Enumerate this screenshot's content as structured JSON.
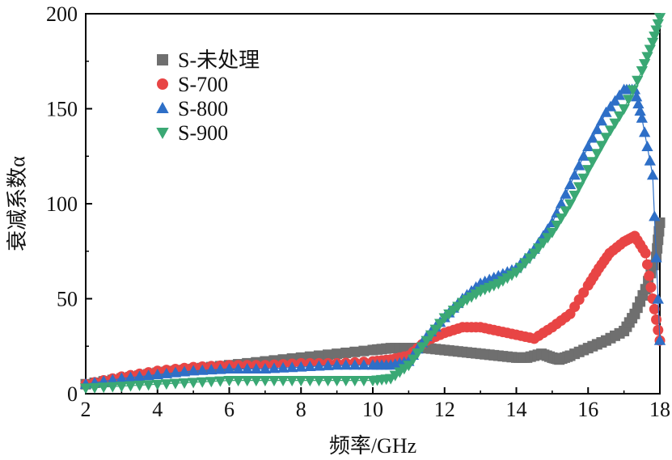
{
  "chart_data": {
    "type": "scatter",
    "title": "",
    "xlabel": "频率/GHz",
    "ylabel": "衰减系数α",
    "xlim": [
      2,
      18
    ],
    "ylim": [
      0,
      200
    ],
    "x_ticks": [
      2,
      4,
      6,
      8,
      10,
      12,
      14,
      16,
      18
    ],
    "y_ticks": [
      0,
      50,
      100,
      150,
      200
    ],
    "legend_position": "top-left",
    "grid": false,
    "series": [
      {
        "name": "S-未处理",
        "marker": "square",
        "color": "#6f6f6f",
        "x": [
          2,
          3,
          4,
          5,
          6,
          7,
          8,
          9,
          10,
          10.5,
          11,
          11.5,
          12,
          12.5,
          13,
          13.5,
          14,
          14.3,
          14.7,
          15,
          15.2,
          15.5,
          16,
          16.5,
          17,
          17.3,
          17.6,
          17.9,
          18
        ],
        "y": [
          5,
          8,
          11,
          13,
          15,
          17,
          19,
          21,
          23,
          24,
          24,
          24,
          23,
          22,
          21,
          20,
          19,
          19,
          21,
          19,
          18,
          20,
          24,
          28,
          33,
          42,
          55,
          72,
          90
        ]
      },
      {
        "name": "S-700",
        "marker": "circle",
        "color": "#e84545",
        "x": [
          2,
          3,
          4,
          5,
          6,
          7,
          8,
          9,
          10,
          10.5,
          11,
          11.5,
          12,
          12.5,
          13,
          13.5,
          14,
          14.5,
          15,
          15.5,
          16,
          16.3,
          16.6,
          17,
          17.3,
          17.6,
          17.8,
          18
        ],
        "y": [
          5,
          9,
          12,
          14,
          15,
          15,
          16,
          16,
          17,
          18,
          20,
          28,
          32,
          35,
          35,
          33,
          31,
          29,
          35,
          42,
          57,
          66,
          74,
          80,
          83,
          74,
          50,
          28
        ]
      },
      {
        "name": "S-800",
        "marker": "triangle-up",
        "color": "#2e6fc7",
        "x": [
          2,
          3,
          4,
          5,
          6,
          7,
          8,
          9,
          10,
          10.5,
          11,
          11.5,
          12,
          12.5,
          13,
          13.5,
          14,
          14.5,
          15,
          15.5,
          16,
          16.5,
          17,
          17.3,
          17.5,
          17.8,
          18
        ],
        "y": [
          5,
          8,
          10,
          12,
          13,
          13,
          14,
          15,
          15,
          15,
          17,
          30,
          40,
          50,
          58,
          62,
          66,
          76,
          90,
          110,
          130,
          148,
          160,
          160,
          145,
          115,
          28
        ]
      },
      {
        "name": "S-900",
        "marker": "triangle-down",
        "color": "#3aa874",
        "x": [
          2,
          3,
          4,
          5,
          6,
          7,
          8,
          9,
          10,
          10.5,
          11,
          11.5,
          12,
          12.5,
          13,
          13.5,
          14,
          14.5,
          15,
          15.5,
          16,
          16.5,
          17,
          17.5,
          17.8,
          18
        ],
        "y": [
          3,
          4,
          5,
          6,
          7,
          7,
          7,
          7,
          7,
          8,
          15,
          28,
          40,
          48,
          54,
          58,
          64,
          74,
          85,
          100,
          118,
          135,
          150,
          170,
          185,
          198
        ]
      }
    ]
  }
}
